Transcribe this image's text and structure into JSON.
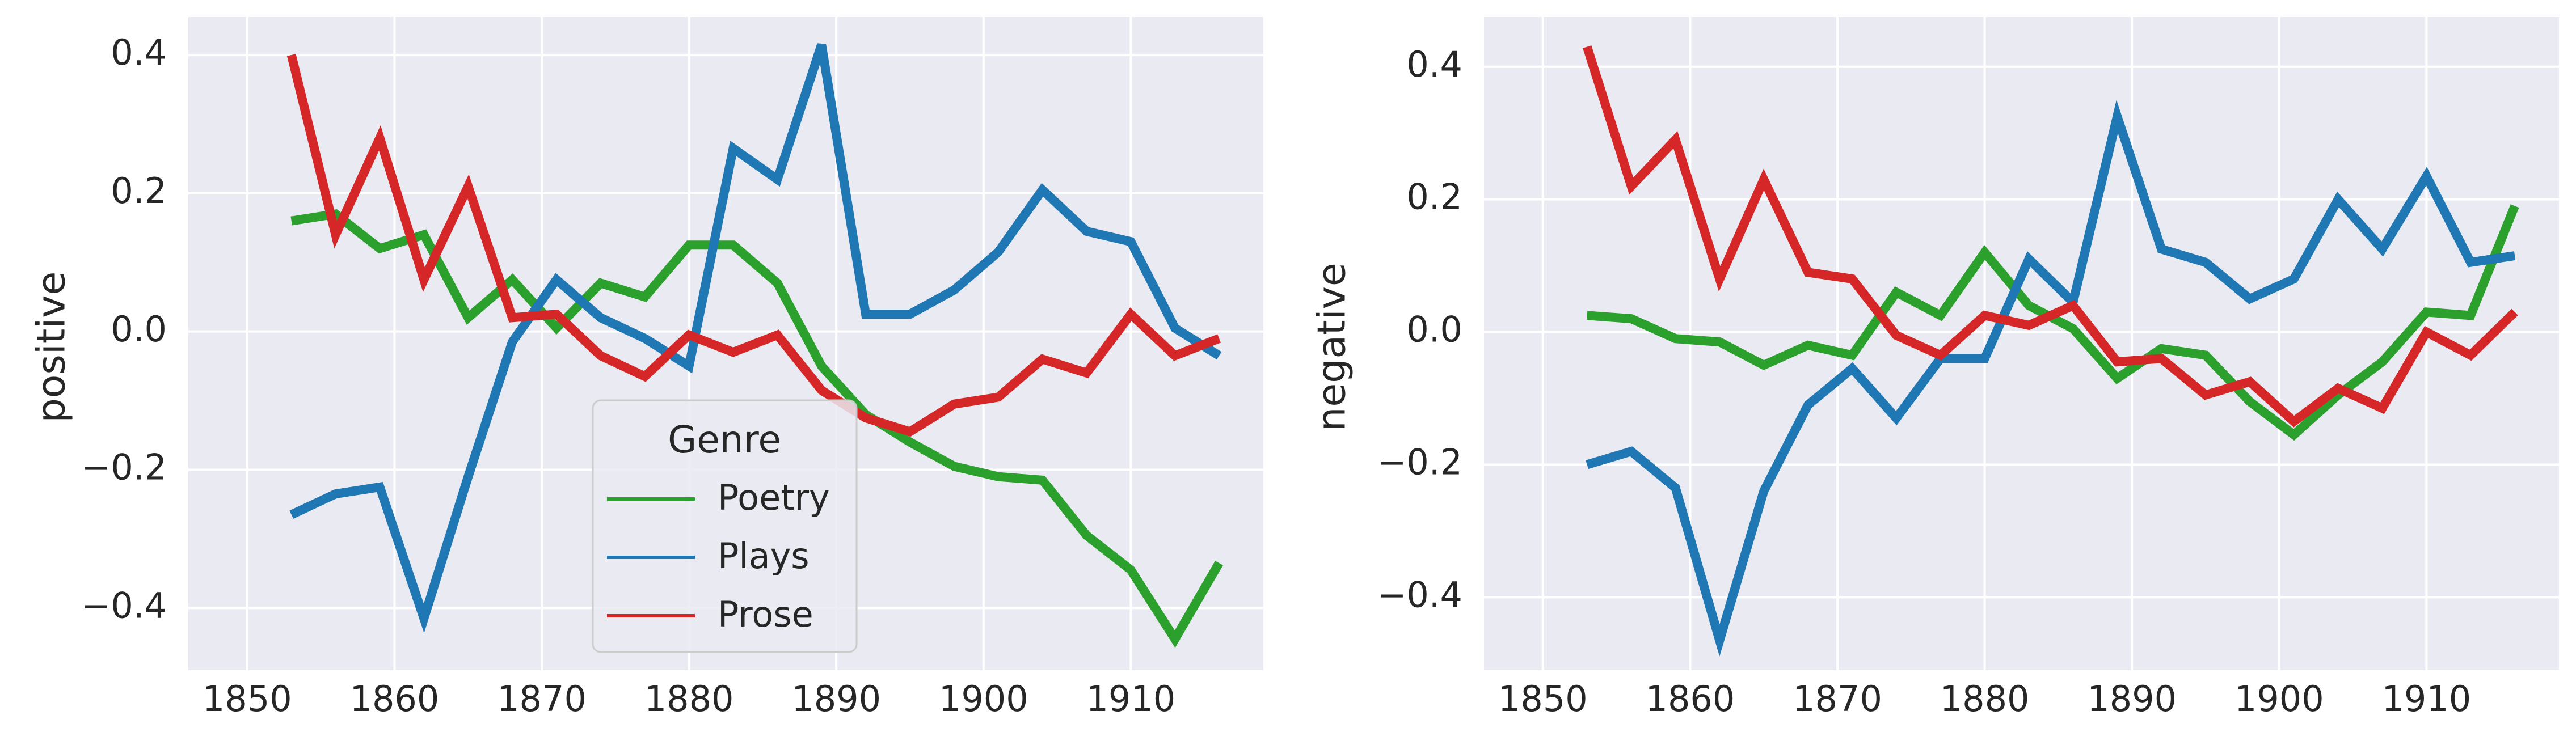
{
  "chart_data": [
    {
      "type": "line",
      "panel": "left",
      "xlabel": "",
      "ylabel": "positive",
      "xlim": [
        1846,
        1919
      ],
      "ylim": [
        -0.49,
        0.455
      ],
      "xticks": [
        1850,
        1860,
        1870,
        1880,
        1890,
        1900,
        1910
      ],
      "xtick_labels": [
        "1850",
        "1860",
        "1870",
        "1880",
        "1890",
        "1900",
        "1910"
      ],
      "yticks": [
        -0.4,
        -0.2,
        0.0,
        0.2,
        0.4
      ],
      "ytick_labels": [
        "−0.4",
        "−0.2",
        "0.0",
        "0.2",
        "0.4"
      ],
      "grid": true,
      "legend": {
        "title": "Genre",
        "placement": "lower-center",
        "entries": [
          "Poetry",
          "Plays",
          "Prose"
        ]
      },
      "x": [
        1853,
        1856,
        1859,
        1862,
        1865,
        1868,
        1871,
        1874,
        1877,
        1880,
        1883,
        1886,
        1889,
        1892,
        1895,
        1898,
        1901,
        1904,
        1907,
        1910,
        1913,
        1916
      ],
      "series": [
        {
          "name": "Poetry",
          "color": "#2ca02c",
          "values": [
            0.16,
            0.17,
            0.12,
            0.14,
            0.02,
            0.075,
            0.005,
            0.07,
            0.05,
            0.125,
            0.125,
            0.07,
            -0.05,
            -0.12,
            -0.16,
            -0.195,
            -0.21,
            -0.215,
            -0.295,
            -0.345,
            -0.445,
            -0.335
          ]
        },
        {
          "name": "Plays",
          "color": "#1f77b4",
          "values": [
            -0.265,
            -0.235,
            -0.225,
            -0.415,
            -0.21,
            -0.015,
            0.075,
            0.02,
            -0.01,
            -0.05,
            0.265,
            0.22,
            0.415,
            0.025,
            0.025,
            0.06,
            0.115,
            0.205,
            0.145,
            0.13,
            0.005,
            -0.035
          ]
        },
        {
          "name": "Prose",
          "color": "#d62728",
          "values": [
            0.4,
            0.14,
            0.28,
            0.075,
            0.21,
            0.02,
            0.025,
            -0.035,
            -0.065,
            -0.005,
            -0.03,
            -0.005,
            -0.085,
            -0.125,
            -0.145,
            -0.105,
            -0.095,
            -0.04,
            -0.06,
            0.025,
            -0.035,
            -0.01
          ]
        }
      ]
    },
    {
      "type": "line",
      "panel": "right",
      "xlabel": "",
      "ylabel": "negative",
      "xlim": [
        1846,
        1919
      ],
      "ylim": [
        -0.51,
        0.475
      ],
      "xticks": [
        1850,
        1860,
        1870,
        1880,
        1890,
        1900,
        1910
      ],
      "xtick_labels": [
        "1850",
        "1860",
        "1870",
        "1880",
        "1890",
        "1900",
        "1910"
      ],
      "yticks": [
        -0.4,
        -0.2,
        0.0,
        0.2,
        0.4
      ],
      "ytick_labels": [
        "−0.4",
        "−0.2",
        "0.0",
        "0.2",
        "0.4"
      ],
      "grid": true,
      "x": [
        1853,
        1856,
        1859,
        1862,
        1865,
        1868,
        1871,
        1874,
        1877,
        1880,
        1883,
        1886,
        1889,
        1892,
        1895,
        1898,
        1901,
        1904,
        1907,
        1910,
        1913,
        1916
      ],
      "series": [
        {
          "name": "Poetry",
          "color": "#2ca02c",
          "values": [
            0.025,
            0.02,
            -0.01,
            -0.015,
            -0.05,
            -0.02,
            -0.035,
            0.06,
            0.025,
            0.12,
            0.04,
            0.005,
            -0.07,
            -0.025,
            -0.035,
            -0.105,
            -0.155,
            -0.095,
            -0.045,
            0.03,
            0.025,
            0.19
          ]
        },
        {
          "name": "Plays",
          "color": "#1f77b4",
          "values": [
            -0.2,
            -0.18,
            -0.235,
            -0.465,
            -0.24,
            -0.11,
            -0.055,
            -0.13,
            -0.04,
            -0.04,
            0.11,
            0.045,
            0.325,
            0.125,
            0.105,
            0.05,
            0.08,
            0.2,
            0.125,
            0.235,
            0.105,
            0.115
          ]
        },
        {
          "name": "Prose",
          "color": "#d62728",
          "values": [
            0.43,
            0.22,
            0.29,
            0.08,
            0.23,
            0.09,
            0.08,
            -0.005,
            -0.035,
            0.025,
            0.01,
            0.04,
            -0.045,
            -0.04,
            -0.095,
            -0.075,
            -0.135,
            -0.085,
            -0.115,
            0.0,
            -0.035,
            0.03
          ]
        }
      ]
    }
  ]
}
